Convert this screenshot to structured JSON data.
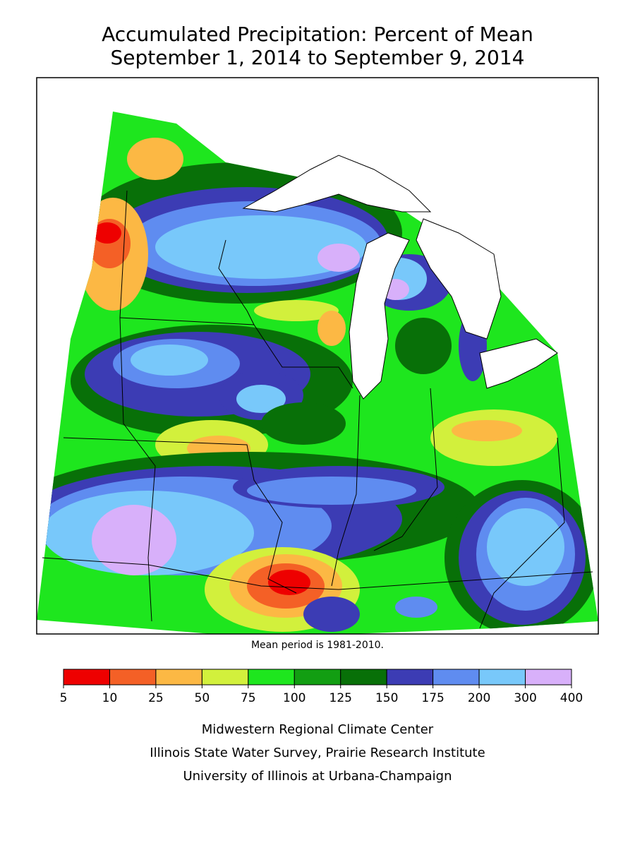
{
  "title": [
    "Accumulated Precipitation: Percent of Mean",
    "September 1, 2014 to September 9, 2014"
  ],
  "note": "Mean period is 1981-2010.",
  "legend": {
    "ticks": [
      5,
      10,
      25,
      50,
      75,
      100,
      125,
      150,
      175,
      200,
      300,
      400
    ],
    "colors": [
      "#ee0000",
      "#f46026",
      "#fcb844",
      "#d2f03c",
      "#1ee61e",
      "#129e12",
      "#087008",
      "#3c3cb4",
      "#5f8cf0",
      "#78c8fa",
      "#d8b0fa"
    ]
  },
  "credits": [
    "Midwestern Regional Climate Center",
    "Illinois State Water Survey, Prairie Research Institute",
    "University of Illinois at Urbana-Champaign"
  ]
}
